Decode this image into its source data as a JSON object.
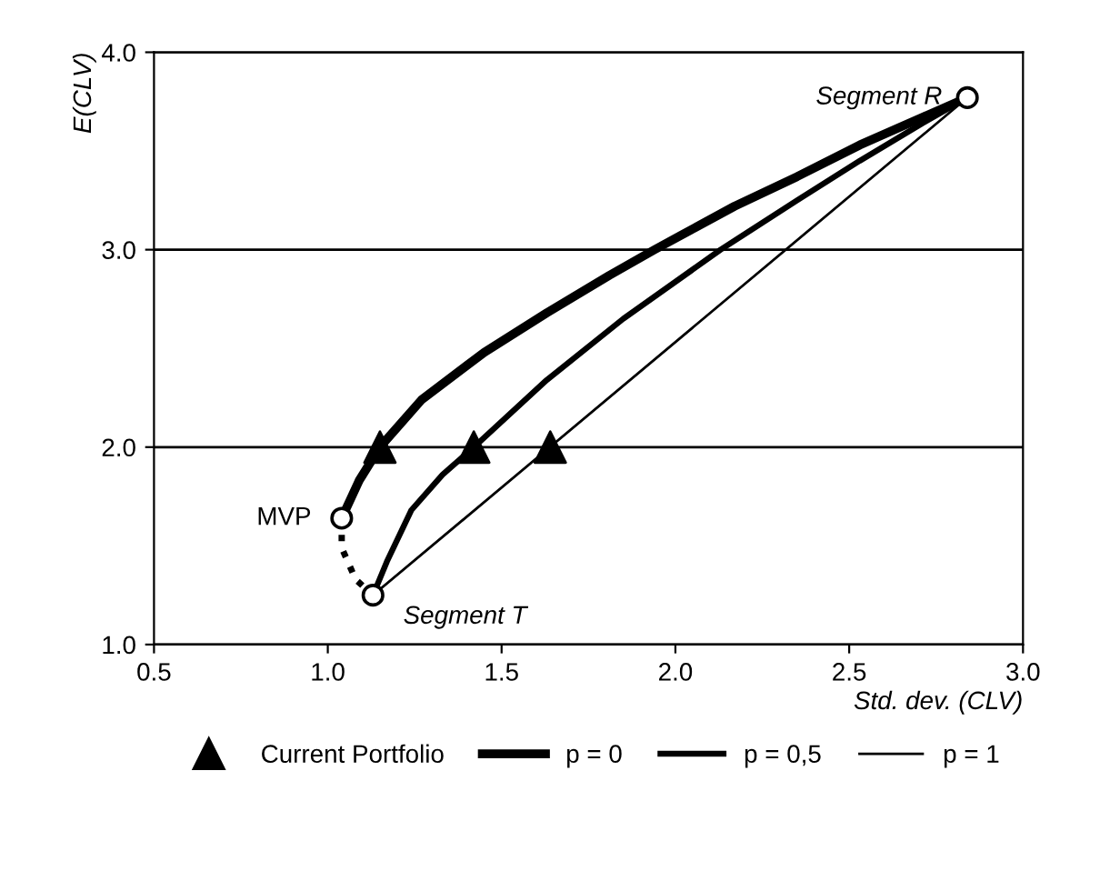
{
  "chart_data": {
    "type": "line",
    "xlabel": "Std. dev. (CLV)",
    "ylabel": "E(CLV)",
    "xlim": [
      0.5,
      3.0
    ],
    "ylim": [
      1.0,
      4.0
    ],
    "xticks": [
      {
        "value": 0.5,
        "label": "0.5"
      },
      {
        "value": 1,
        "label": "1.0"
      },
      {
        "value": 1.5,
        "label": "1.5"
      },
      {
        "value": 2,
        "label": "2.0"
      },
      {
        "value": 2.5,
        "label": "2.5"
      },
      {
        "value": 3,
        "label": "3.0"
      }
    ],
    "yticks": [
      {
        "value": 1,
        "label": "1.0"
      },
      {
        "value": 2,
        "label": "2.0"
      },
      {
        "value": 3,
        "label": "3.0"
      },
      {
        "value": 4,
        "label": "4.0"
      }
    ],
    "grid": "y",
    "legend": "bottom",
    "series": [
      {
        "name": "Current Portfolio",
        "type": "scatter",
        "marker": "triangle",
        "color": "#000000",
        "x": [
          1.15,
          1.42,
          1.64
        ],
        "values": [
          2.0,
          2.0,
          2.0
        ]
      },
      {
        "name": "p = 0",
        "line_style": "solid",
        "color": "#000000",
        "x": [
          1.04,
          1.09,
          1.15,
          1.27,
          1.45,
          1.63,
          1.81,
          1.94,
          2.17,
          2.35,
          2.53,
          2.71,
          2.84
        ],
        "values": [
          1.64,
          1.83,
          2.0,
          2.24,
          2.48,
          2.68,
          2.87,
          3.0,
          3.22,
          3.37,
          3.53,
          3.67,
          3.77
        ]
      },
      {
        "name": "p = 0,5",
        "line_style": "solid",
        "color": "#000000",
        "x": [
          1.13,
          1.17,
          1.24,
          1.33,
          1.42,
          1.63,
          1.85,
          2.13,
          2.35,
          2.53,
          2.71,
          2.84
        ],
        "values": [
          1.25,
          1.42,
          1.68,
          1.86,
          2.0,
          2.34,
          2.65,
          3.0,
          3.25,
          3.45,
          3.64,
          3.77
        ]
      },
      {
        "name": "p = 1",
        "line_style": "solid",
        "color": "#000000",
        "x": [
          1.13,
          2.84
        ],
        "values": [
          1.25,
          3.77
        ]
      },
      {
        "line_style": "dotted",
        "color": "#000000",
        "x": [
          1.04,
          1.04,
          1.08,
          1.13
        ],
        "values": [
          1.64,
          1.49,
          1.33,
          1.25
        ]
      },
      {
        "type": "scatter",
        "marker": "circle",
        "color": "#000000",
        "x": [
          2.84,
          1.04,
          1.13
        ],
        "values": [
          3.77,
          1.64,
          1.25
        ]
      }
    ],
    "annotations": [
      {
        "text": "Segment R",
        "x": 2.84,
        "y": 3.77
      },
      {
        "text": "MVP",
        "x": 1.04,
        "y": 1.64
      },
      {
        "text": "Segment T",
        "x": 1.13,
        "y": 1.25
      }
    ]
  }
}
